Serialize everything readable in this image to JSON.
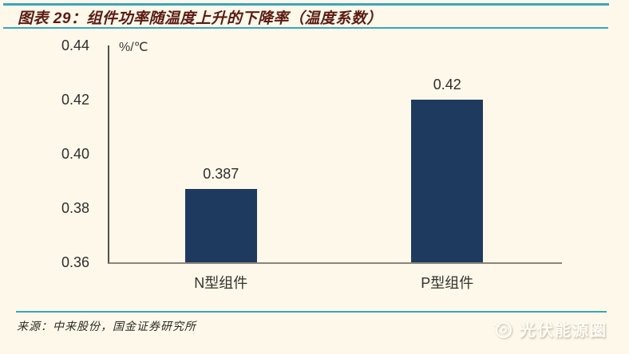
{
  "page": {
    "background": "#FDF8EA",
    "accent_line_color": "#3BA6B9"
  },
  "header": {
    "title": "图表 29：组件功率随温度上升的下降率（温度系数）",
    "title_color": "#5A1B12"
  },
  "chart_data": {
    "type": "bar",
    "title": "图表 29：组件功率随温度上升的下降率（温度系数）",
    "unit_label": "%/℃",
    "categories": [
      "N型组件",
      "P型组件"
    ],
    "values": [
      0.387,
      0.42
    ],
    "value_labels": [
      "0.387",
      "0.42"
    ],
    "xlabel": "",
    "ylabel": "%/℃",
    "ylim": [
      0.36,
      0.44
    ],
    "ytick_values": [
      0.36,
      0.38,
      0.4,
      0.42,
      0.44
    ],
    "ytick_labels": [
      "0.36",
      "0.38",
      "0.40",
      "0.42",
      "0.44"
    ],
    "grid": false,
    "legend_position": "none",
    "bar_color": "#1F3A5F"
  },
  "footer": {
    "source": "来源：中来股份，国金证券研究所",
    "watermark_label": "光伏能源圈"
  }
}
